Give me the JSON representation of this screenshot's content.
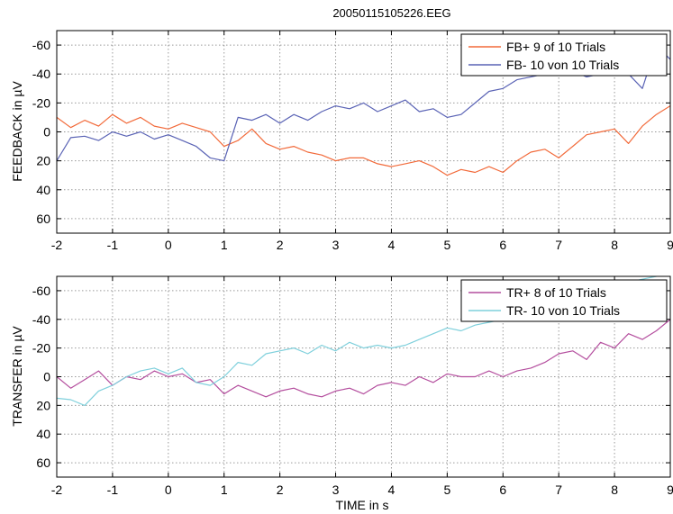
{
  "chart_data": [
    {
      "type": "line",
      "title": "20050115105226.EEG",
      "xlabel": "",
      "ylabel": "FEEDBACK in µV",
      "xlim": [
        -2,
        9
      ],
      "ylim": [
        70,
        -70
      ],
      "y_reversed": true,
      "xticks": [
        -2,
        -1,
        0,
        1,
        2,
        3,
        4,
        5,
        6,
        7,
        8,
        9
      ],
      "yticks": [
        -60,
        -40,
        -20,
        0,
        20,
        40,
        60
      ],
      "grid": true,
      "legend_position": "top-right",
      "series": [
        {
          "name": "FB+  9 of 10  Trials",
          "color": "#f26a3a",
          "x": [
            -2.0,
            -1.75,
            -1.5,
            -1.25,
            -1.0,
            -0.75,
            -0.5,
            -0.25,
            0.0,
            0.25,
            0.5,
            0.75,
            1.0,
            1.25,
            1.5,
            1.75,
            2.0,
            2.25,
            2.5,
            2.75,
            3.0,
            3.25,
            3.5,
            3.75,
            4.0,
            4.25,
            4.5,
            4.75,
            5.0,
            5.25,
            5.5,
            5.75,
            6.0,
            6.25,
            6.5,
            6.75,
            7.0,
            7.25,
            7.5,
            7.75,
            8.0,
            8.25,
            8.5,
            8.75,
            9.0
          ],
          "y": [
            -10,
            -3,
            -8,
            -4,
            -12,
            -6,
            -10,
            -4,
            -2,
            -6,
            -3,
            0,
            10,
            6,
            -2,
            8,
            12,
            10,
            14,
            16,
            20,
            18,
            18,
            22,
            24,
            22,
            20,
            24,
            30,
            26,
            28,
            24,
            28,
            20,
            14,
            12,
            18,
            10,
            2,
            0,
            -2,
            8,
            -4,
            -12,
            -18
          ]
        },
        {
          "name": "FB-  10 von 10  Trials",
          "color": "#5a63b5",
          "x": [
            -2.0,
            -1.75,
            -1.5,
            -1.25,
            -1.0,
            -0.75,
            -0.5,
            -0.25,
            0.0,
            0.25,
            0.5,
            0.75,
            1.0,
            1.25,
            1.5,
            1.75,
            2.0,
            2.25,
            2.5,
            2.75,
            3.0,
            3.25,
            3.5,
            3.75,
            4.0,
            4.25,
            4.5,
            4.75,
            5.0,
            5.25,
            5.5,
            5.75,
            6.0,
            6.25,
            6.5,
            6.75,
            7.0,
            7.25,
            7.5,
            7.75,
            8.0,
            8.25,
            8.5,
            8.75,
            9.0
          ],
          "y": [
            20,
            4,
            3,
            6,
            0,
            3,
            0,
            5,
            2,
            6,
            10,
            18,
            20,
            -10,
            -8,
            -12,
            -6,
            -12,
            -8,
            -14,
            -18,
            -16,
            -20,
            -14,
            -18,
            -22,
            -14,
            -16,
            -10,
            -12,
            -20,
            -28,
            -30,
            -36,
            -38,
            -40,
            -44,
            -42,
            -38,
            -40,
            -48,
            -40,
            -30,
            -60,
            -50
          ]
        }
      ]
    },
    {
      "type": "line",
      "title": "",
      "xlabel": "TIME in s",
      "ylabel": "TRANSFER in µV",
      "xlim": [
        -2,
        9
      ],
      "ylim": [
        70,
        -70
      ],
      "y_reversed": true,
      "xticks": [
        -2,
        -1,
        0,
        1,
        2,
        3,
        4,
        5,
        6,
        7,
        8,
        9
      ],
      "yticks": [
        -60,
        -40,
        -20,
        0,
        20,
        40,
        60
      ],
      "grid": true,
      "legend_position": "top-right",
      "series": [
        {
          "name": "TR+  8 of 10  Trials",
          "color": "#b44e9e",
          "x": [
            -2.0,
            -1.75,
            -1.5,
            -1.25,
            -1.0,
            -0.75,
            -0.5,
            -0.25,
            0.0,
            0.25,
            0.5,
            0.75,
            1.0,
            1.25,
            1.5,
            1.75,
            2.0,
            2.25,
            2.5,
            2.75,
            3.0,
            3.25,
            3.5,
            3.75,
            4.0,
            4.25,
            4.5,
            4.75,
            5.0,
            5.25,
            5.5,
            5.75,
            6.0,
            6.25,
            6.5,
            6.75,
            7.0,
            7.25,
            7.5,
            7.75,
            8.0,
            8.25,
            8.5,
            8.75,
            9.0
          ],
          "y": [
            0,
            8,
            2,
            -4,
            6,
            0,
            2,
            -4,
            0,
            -2,
            4,
            2,
            12,
            6,
            10,
            14,
            10,
            8,
            12,
            14,
            10,
            8,
            12,
            6,
            4,
            6,
            0,
            4,
            -2,
            0,
            0,
            -4,
            0,
            -4,
            -6,
            -10,
            -16,
            -18,
            -12,
            -24,
            -20,
            -30,
            -26,
            -32,
            -40
          ]
        },
        {
          "name": "TR-  10 von 10  Trials",
          "color": "#7fd0dc",
          "x": [
            -2.0,
            -1.75,
            -1.5,
            -1.25,
            -1.0,
            -0.75,
            -0.5,
            -0.25,
            0.0,
            0.25,
            0.5,
            0.75,
            1.0,
            1.25,
            1.5,
            1.75,
            2.0,
            2.25,
            2.5,
            2.75,
            3.0,
            3.25,
            3.5,
            3.75,
            4.0,
            4.25,
            4.5,
            4.75,
            5.0,
            5.25,
            5.5,
            5.75,
            6.0,
            6.25,
            6.5,
            6.75,
            7.0,
            7.25,
            7.5,
            7.75,
            8.0,
            8.25,
            8.5,
            8.75,
            9.0
          ],
          "y": [
            15,
            16,
            20,
            10,
            6,
            0,
            -4,
            -6,
            -2,
            -6,
            4,
            6,
            0,
            -10,
            -8,
            -16,
            -18,
            -20,
            -16,
            -22,
            -18,
            -24,
            -20,
            -22,
            -20,
            -22,
            -26,
            -30,
            -34,
            -32,
            -36,
            -38,
            -40,
            -44,
            -48,
            -50,
            -52,
            -56,
            -60,
            -64,
            -62,
            -66,
            -68,
            -70,
            -72
          ]
        }
      ]
    }
  ]
}
